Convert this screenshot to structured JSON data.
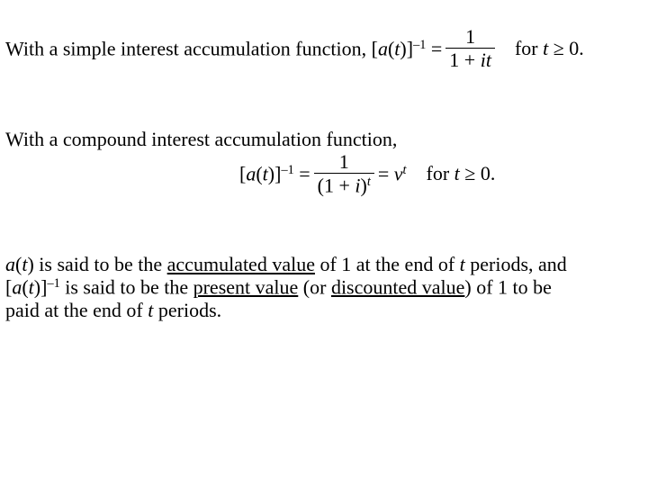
{
  "typography": {
    "font_family": "Times New Roman",
    "font_size_pt": 17,
    "text_color": "#000000",
    "background_color": "#ffffff"
  },
  "block1": {
    "lead": "With a simple interest accumulation function, [",
    "a": "a",
    "open_paren": "(",
    "t": "t",
    "close_bracket": ")]",
    "exp_minus1": "–1",
    "equals": " = ",
    "frac": {
      "num": "1",
      "den_pre": "1 + ",
      "den_i": "i",
      "den_t": "t"
    },
    "for_pre": "for ",
    "for_t": "t",
    "ge": " ≥ 0."
  },
  "block2": {
    "line1": "With a compound interest accumulation function,",
    "open_bracket": "[",
    "a": "a",
    "open_paren": "(",
    "t": "t",
    "close_bracket": ")]",
    "exp_minus1": "–1",
    "equals": " = ",
    "frac": {
      "num": "1",
      "den_pre": "(1 + ",
      "den_i": "i",
      "den_close": ")",
      "den_exp_t": "t"
    },
    "mid_eq": " =  ",
    "nu": "ν",
    "nu_exp_t": "t",
    "for_pre": "for ",
    "for_t": "t",
    "ge": " ≥ 0."
  },
  "block3": {
    "l1_a": "a",
    "l1_open": "(",
    "l1_t": "t",
    "l1_close": ")",
    "l1_text1": " is said to be the ",
    "l1_u1": "accumulated value",
    "l1_text2": " of 1 at the end of ",
    "l1_t2": "t",
    "l1_text3": " periods, and",
    "l2_open": "[",
    "l2_a": "a",
    "l2_paren_open": "(",
    "l2_t": "t",
    "l2_close": ")]",
    "l2_exp": "–1",
    "l2_text1": " is said to be the ",
    "l2_u1": "present value",
    "l2_text2": " (or ",
    "l2_u2": "discounted value",
    "l2_text3": ") of 1 to be",
    "l3_text1": "paid at the end of ",
    "l3_t": "t",
    "l3_text2": " periods."
  }
}
